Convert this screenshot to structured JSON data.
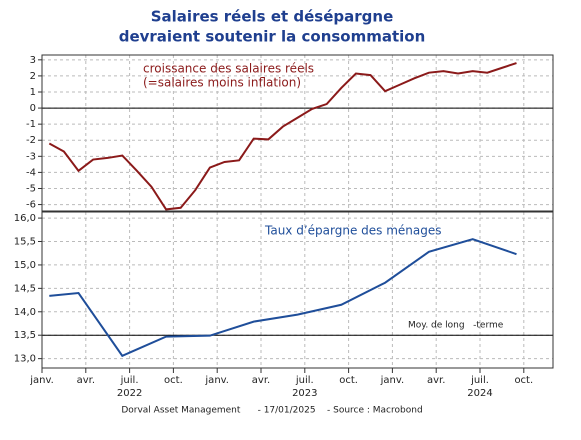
{
  "title": [
    "Salaires réels et désépargne",
    "devraient soutenir la consommation"
  ],
  "source": "Dorval Asset Management      - 17/01/2025    - Source : Macrobond",
  "x_axis": {
    "xlim": [
      "2022-01",
      "2024-12"
    ],
    "ticks": [
      {
        "value": "2022-01",
        "label": "janv."
      },
      {
        "value": "2022-04",
        "label": "avr."
      },
      {
        "value": "2022-07",
        "label": "juil."
      },
      {
        "value": "2022-10",
        "label": "oct."
      },
      {
        "value": "2023-01",
        "label": "janv."
      },
      {
        "value": "2023-04",
        "label": "avr."
      },
      {
        "value": "2023-07",
        "label": "juil."
      },
      {
        "value": "2023-10",
        "label": "oct."
      },
      {
        "value": "2024-01",
        "label": "janv."
      },
      {
        "value": "2024-04",
        "label": "avr."
      },
      {
        "value": "2024-07",
        "label": "juil."
      },
      {
        "value": "2024-10",
        "label": "oct."
      }
    ],
    "years": [
      {
        "value": "2022-07",
        "label": "2022"
      },
      {
        "value": "2023-07",
        "label": "2023"
      },
      {
        "value": "2024-07",
        "label": "2024"
      }
    ]
  },
  "chart_data": [
    {
      "type": "line",
      "ylim": [
        -6.4,
        3.3
      ],
      "yticks": [
        3,
        2,
        1,
        0,
        -1,
        -2,
        -3,
        -4,
        -5,
        -6
      ],
      "grid": true,
      "reference_line": 0,
      "x": [
        "2022-01",
        "2022-02",
        "2022-03",
        "2022-04",
        "2022-05",
        "2022-06",
        "2022-07",
        "2022-08",
        "2022-09",
        "2022-10",
        "2022-11",
        "2022-12",
        "2023-01",
        "2023-02",
        "2023-03",
        "2023-04",
        "2023-05",
        "2023-06",
        "2023-07",
        "2023-08",
        "2023-09",
        "2023-10",
        "2023-11",
        "2023-12",
        "2024-01",
        "2024-02",
        "2024-03",
        "2024-04",
        "2024-05",
        "2024-06",
        "2024-07",
        "2024-08",
        "2024-09"
      ],
      "series": [
        {
          "name": "croissance des salaires réels",
          "note": "(=salaires moins inflation)",
          "color": "#8b1a1a",
          "values": [
            -2.2,
            -2.7,
            -3.9,
            -3.2,
            -3.1,
            -2.95,
            -3.9,
            -4.9,
            -6.3,
            -6.2,
            -5.1,
            -3.7,
            -3.35,
            -3.25,
            -1.9,
            -1.95,
            -1.15,
            -0.6,
            -0.05,
            0.25,
            1.25,
            2.15,
            2.05,
            1.05,
            1.45,
            1.85,
            2.2,
            2.3,
            2.15,
            2.3,
            2.2,
            2.5,
            2.8
          ]
        }
      ]
    },
    {
      "type": "line",
      "ylim": [
        12.8,
        16.13
      ],
      "yticks": [
        {
          "value": 16,
          "label": "16,0"
        },
        {
          "value": 15.5,
          "label": "15,5"
        },
        {
          "value": 15,
          "label": "15,0"
        },
        {
          "value": 14.5,
          "label": "14,5"
        },
        {
          "value": 14,
          "label": "14,0"
        },
        {
          "value": 13.5,
          "label": "13,5"
        },
        {
          "value": 13,
          "label": "13,0"
        }
      ],
      "grid": true,
      "average_line": {
        "value": 13.5,
        "label": "Moy. de long   -terme"
      },
      "x": [
        "2022-01",
        "2022-03",
        "2022-06",
        "2022-09",
        "2022-12",
        "2023-03",
        "2023-06",
        "2023-09",
        "2023-12",
        "2024-03",
        "2024-06",
        "2024-09"
      ],
      "series": [
        {
          "name": "Taux d’épargne des ménages",
          "color": "#1f4e9a",
          "values": [
            14.34,
            14.4,
            13.06,
            13.47,
            13.49,
            13.79,
            13.94,
            14.15,
            14.62,
            15.28,
            15.55,
            15.23
          ]
        }
      ]
    }
  ]
}
